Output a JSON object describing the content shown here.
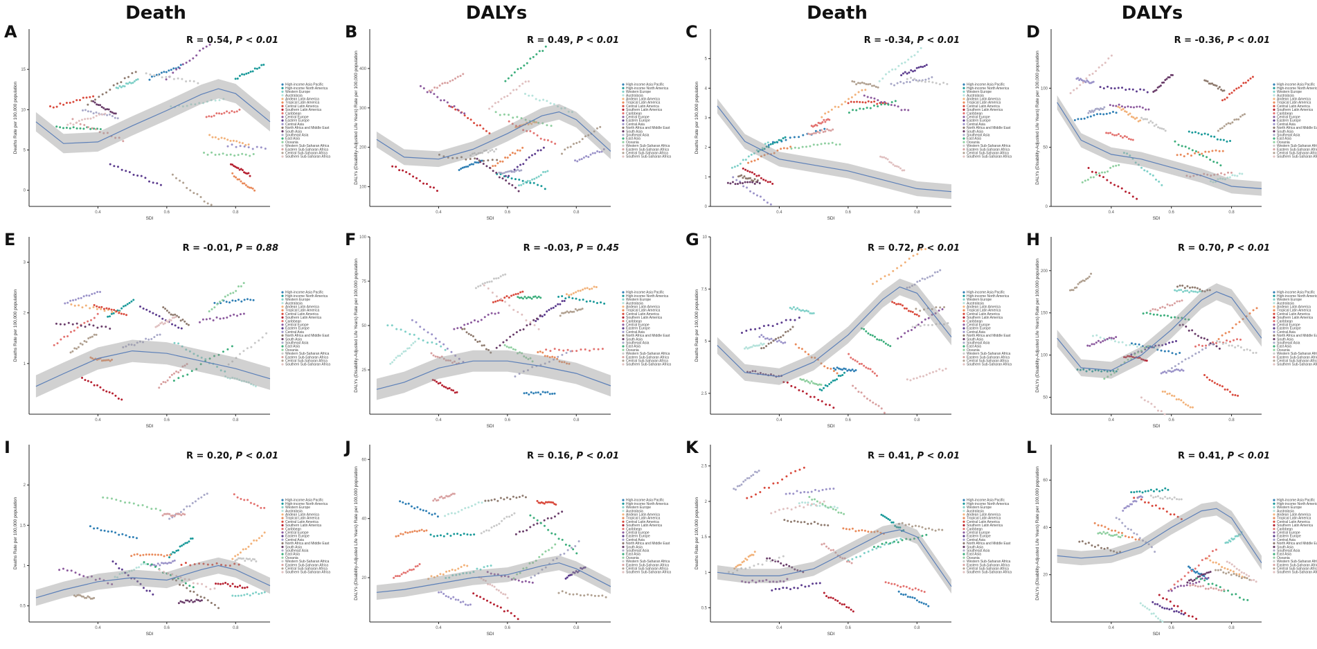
{
  "column_titles": [
    "Death",
    "DALYs",
    "Death",
    "DALYs"
  ],
  "regions": [
    {
      "name": "High-income Asia Pacific",
      "color": "#2f7fb5"
    },
    {
      "name": "High-income North America",
      "color": "#1a9a9a"
    },
    {
      "name": "Western Europe",
      "color": "#7fd0c8"
    },
    {
      "name": "Australasia",
      "color": "#b7e3dc"
    },
    {
      "name": "Andean Latin America",
      "color": "#f2b27a"
    },
    {
      "name": "Tropical Latin America",
      "color": "#e98a5a"
    },
    {
      "name": "Central Latin America",
      "color": "#d94a3d"
    },
    {
      "name": "Southern Latin America",
      "color": "#b62030"
    },
    {
      "name": "Caribbean",
      "color": "#e37370"
    },
    {
      "name": "Central Europe",
      "color": "#8c5a9e"
    },
    {
      "name": "Eastern Europe",
      "color": "#5c3c8e"
    },
    {
      "name": "Central Asia",
      "color": "#9b93c9"
    },
    {
      "name": "North Africa and Middle East",
      "color": "#8e7a6e"
    },
    {
      "name": "South Asia",
      "color": "#6a3d6a"
    },
    {
      "name": "Southeast Asia",
      "color": "#a8a8c8"
    },
    {
      "name": "East Asia",
      "color": "#3cae7c"
    },
    {
      "name": "Oceania",
      "color": "#8fcfa0"
    },
    {
      "name": "Western Sub-Saharan Africa",
      "color": "#c8c8c8"
    },
    {
      "name": "Eastern Sub-Saharan Africa",
      "color": "#d8a0a0"
    },
    {
      "name": "Central Sub-Saharan Africa",
      "color": "#b0a090"
    },
    {
      "name": "Southern Sub-Saharan Africa",
      "color": "#e0c0c0"
    }
  ],
  "chart_data": [
    {
      "panel": "A",
      "type": "scatter",
      "xlabel": "SDI",
      "ylabel": "Deaths Rate per 100,000 population",
      "r_text": "R = 0.54, ",
      "p_text": "P < 0.01",
      "xlim": [
        0.2,
        0.9
      ],
      "ylim": [
        -2,
        20
      ],
      "xticks": [
        0.4,
        0.6,
        0.8
      ],
      "yticks": [
        0,
        5,
        10,
        15
      ],
      "fit": [
        [
          0.22,
          8.5
        ],
        [
          0.3,
          5.8
        ],
        [
          0.4,
          6.0
        ],
        [
          0.5,
          8.0
        ],
        [
          0.6,
          9.9
        ],
        [
          0.7,
          11.9
        ],
        [
          0.75,
          12.6
        ],
        [
          0.8,
          12.0
        ],
        [
          0.9,
          8.5
        ]
      ],
      "band": 1.2
    },
    {
      "panel": "B",
      "type": "scatter",
      "xlabel": "SDI",
      "ylabel": "DALYs (Disability-Adjusted Life Years) Rate per 100,000 population",
      "r_text": "R = 0.49, ",
      "p_text": "P < 0.01",
      "xlim": [
        0.2,
        0.9
      ],
      "ylim": [
        50,
        500
      ],
      "xticks": [
        0.4,
        0.6,
        0.8
      ],
      "yticks": [
        100,
        200,
        300,
        400
      ],
      "fit": [
        [
          0.22,
          220
        ],
        [
          0.3,
          175
        ],
        [
          0.4,
          170
        ],
        [
          0.5,
          195
        ],
        [
          0.6,
          235
        ],
        [
          0.7,
          280
        ],
        [
          0.75,
          290
        ],
        [
          0.8,
          270
        ],
        [
          0.9,
          190
        ]
      ],
      "band": 20
    },
    {
      "panel": "C",
      "type": "scatter",
      "xlabel": "SDI",
      "ylabel": "Deaths Rate per 100,000 population",
      "r_text": "R = -0.34, ",
      "p_text": "P < 0.01",
      "xlim": [
        0.2,
        0.9
      ],
      "ylim": [
        0,
        6
      ],
      "xticks": [
        0.4,
        0.6,
        0.8
      ],
      "yticks": [
        0,
        1,
        2,
        3,
        4,
        5
      ],
      "fit": [
        [
          0.22,
          3.4
        ],
        [
          0.3,
          2.2
        ],
        [
          0.4,
          1.6
        ],
        [
          0.5,
          1.4
        ],
        [
          0.6,
          1.2
        ],
        [
          0.7,
          0.9
        ],
        [
          0.8,
          0.6
        ],
        [
          0.9,
          0.5
        ]
      ],
      "band": 0.25
    },
    {
      "panel": "D",
      "type": "scatter",
      "xlabel": "SDI",
      "ylabel": "DALYs (Disability-Adjusted Life Years) Rate per 100,000 population",
      "r_text": "R = -0.36, ",
      "p_text": "P < 0.01",
      "xlim": [
        0.2,
        0.9
      ],
      "ylim": [
        0,
        150
      ],
      "xticks": [
        0.4,
        0.6,
        0.8
      ],
      "yticks": [
        0,
        50,
        100
      ],
      "fit": [
        [
          0.22,
          88
        ],
        [
          0.3,
          56
        ],
        [
          0.4,
          44
        ],
        [
          0.5,
          40
        ],
        [
          0.6,
          33
        ],
        [
          0.7,
          26
        ],
        [
          0.8,
          17
        ],
        [
          0.9,
          15
        ]
      ],
      "band": 6
    },
    {
      "panel": "E",
      "type": "scatter",
      "xlabel": "SDI",
      "ylabel": "Deaths Rate per 100,000 population",
      "r_text": "R = -0.01, ",
      "p_text": "P = 0.88",
      "xlim": [
        0.2,
        0.9
      ],
      "ylim": [
        0,
        3.5
      ],
      "xticks": [
        0.4,
        0.6,
        0.8
      ],
      "yticks": [
        1,
        2,
        3
      ],
      "fit": [
        [
          0.22,
          0.55
        ],
        [
          0.3,
          0.8
        ],
        [
          0.4,
          1.1
        ],
        [
          0.5,
          1.25
        ],
        [
          0.6,
          1.2
        ],
        [
          0.7,
          1.05
        ],
        [
          0.8,
          0.9
        ],
        [
          0.9,
          0.7
        ]
      ],
      "band": 0.22
    },
    {
      "panel": "F",
      "type": "scatter",
      "xlabel": "SDI",
      "ylabel": "DALYs (Disability-Adjusted Life Years) Rate per 100,000 population",
      "r_text": "R = -0.03, ",
      "p_text": "P = 0.45",
      "xlim": [
        0.2,
        0.9
      ],
      "ylim": [
        0,
        100
      ],
      "xticks": [
        0.4,
        0.6,
        0.8
      ],
      "yticks": [
        25,
        50,
        75,
        100
      ],
      "fit": [
        [
          0.22,
          14
        ],
        [
          0.3,
          18
        ],
        [
          0.4,
          26
        ],
        [
          0.5,
          30
        ],
        [
          0.6,
          30
        ],
        [
          0.7,
          27
        ],
        [
          0.8,
          23
        ],
        [
          0.9,
          16
        ]
      ],
      "band": 6
    },
    {
      "panel": "G",
      "type": "scatter",
      "xlabel": "SDI",
      "ylabel": "Deaths Rate per 100,000 population",
      "r_text": "R = 0.72, ",
      "p_text": "P < 0.01",
      "xlim": [
        0.2,
        0.9
      ],
      "ylim": [
        1.5,
        10
      ],
      "xticks": [
        0.4,
        0.6,
        0.8
      ],
      "yticks": [
        2.5,
        5.0,
        7.5,
        10.0
      ],
      "fit": [
        [
          0.22,
          4.8
        ],
        [
          0.3,
          3.5
        ],
        [
          0.4,
          3.3
        ],
        [
          0.5,
          4.0
        ],
        [
          0.6,
          5.3
        ],
        [
          0.7,
          7.0
        ],
        [
          0.75,
          7.6
        ],
        [
          0.8,
          7.3
        ],
        [
          0.9,
          5.2
        ]
      ],
      "band": 0.4
    },
    {
      "panel": "H",
      "type": "scatter",
      "xlabel": "SDI",
      "ylabel": "DALYs (Disability-Adjusted Life Years) Rate per 100,000 population",
      "r_text": "R = 0.70, ",
      "p_text": "P < 0.01",
      "xlim": [
        0.2,
        0.9
      ],
      "ylim": [
        30,
        240
      ],
      "xticks": [
        0.4,
        0.6,
        0.8
      ],
      "yticks": [
        50,
        100,
        150,
        200
      ],
      "fit": [
        [
          0.22,
          120
        ],
        [
          0.3,
          85
        ],
        [
          0.4,
          82
        ],
        [
          0.5,
          100
        ],
        [
          0.6,
          130
        ],
        [
          0.7,
          165
        ],
        [
          0.75,
          175
        ],
        [
          0.8,
          168
        ],
        [
          0.9,
          120
        ]
      ],
      "band": 10
    },
    {
      "panel": "I",
      "type": "scatter",
      "xlabel": "SDI",
      "ylabel": "Deaths Rate per 100,000 population",
      "r_text": "R = 0.20, ",
      "p_text": "P < 0.01",
      "xlim": [
        0.2,
        0.9
      ],
      "ylim": [
        0.3,
        2.5
      ],
      "xticks": [
        0.4,
        0.6,
        0.8
      ],
      "yticks": [
        0.5,
        1.0,
        1.5,
        2.0
      ],
      "fit": [
        [
          0.22,
          0.6
        ],
        [
          0.3,
          0.7
        ],
        [
          0.4,
          0.8
        ],
        [
          0.5,
          0.85
        ],
        [
          0.6,
          0.82
        ],
        [
          0.7,
          0.95
        ],
        [
          0.75,
          1.0
        ],
        [
          0.8,
          0.95
        ],
        [
          0.9,
          0.75
        ]
      ],
      "band": 0.1
    },
    {
      "panel": "J",
      "type": "scatter",
      "xlabel": "SDI",
      "ylabel": "DALYs (Disability-Adjusted Life Years) Rate per 100,000 population",
      "r_text": "R = 0.16, ",
      "p_text": "P < 0.01",
      "xlim": [
        0.2,
        0.9
      ],
      "ylim": [
        5,
        65
      ],
      "xticks": [
        0.4,
        0.6,
        0.8
      ],
      "yticks": [
        20,
        40,
        60
      ],
      "fit": [
        [
          0.22,
          15
        ],
        [
          0.3,
          16
        ],
        [
          0.4,
          18
        ],
        [
          0.5,
          20
        ],
        [
          0.6,
          21
        ],
        [
          0.7,
          24
        ],
        [
          0.75,
          25
        ],
        [
          0.8,
          23
        ],
        [
          0.9,
          17
        ]
      ],
      "band": 2.5
    },
    {
      "panel": "K",
      "type": "scatter",
      "xlabel": "SDI",
      "ylabel": "Deaths Rate per 100,000 population",
      "r_text": "R = 0.41, ",
      "p_text": "P < 0.01",
      "xlim": [
        0.2,
        0.9
      ],
      "ylim": [
        0.3,
        2.8
      ],
      "xticks": [
        0.4,
        0.6,
        0.8
      ],
      "yticks": [
        0.5,
        1.0,
        1.5,
        2.0,
        2.5
      ],
      "fit": [
        [
          0.22,
          1.0
        ],
        [
          0.3,
          0.95
        ],
        [
          0.4,
          0.95
        ],
        [
          0.5,
          1.05
        ],
        [
          0.6,
          1.3
        ],
        [
          0.7,
          1.55
        ],
        [
          0.75,
          1.6
        ],
        [
          0.8,
          1.5
        ],
        [
          0.9,
          0.8
        ]
      ],
      "band": 0.1
    },
    {
      "panel": "L",
      "type": "scatter",
      "xlabel": "SDI",
      "ylabel": "DALYs (Disability-Adjusted Life Years) Rate per 100,000 population",
      "r_text": "R = 0.41, ",
      "p_text": "P < 0.01",
      "xlim": [
        0.2,
        0.9
      ],
      "ylim": [
        0,
        75
      ],
      "xticks": [
        0.4,
        0.6,
        0.8
      ],
      "yticks": [
        20,
        40,
        60
      ],
      "fit": [
        [
          0.22,
          28
        ],
        [
          0.3,
          27
        ],
        [
          0.4,
          28
        ],
        [
          0.5,
          32
        ],
        [
          0.6,
          40
        ],
        [
          0.7,
          47
        ],
        [
          0.75,
          48
        ],
        [
          0.8,
          44
        ],
        [
          0.9,
          25
        ]
      ],
      "band": 3
    }
  ]
}
